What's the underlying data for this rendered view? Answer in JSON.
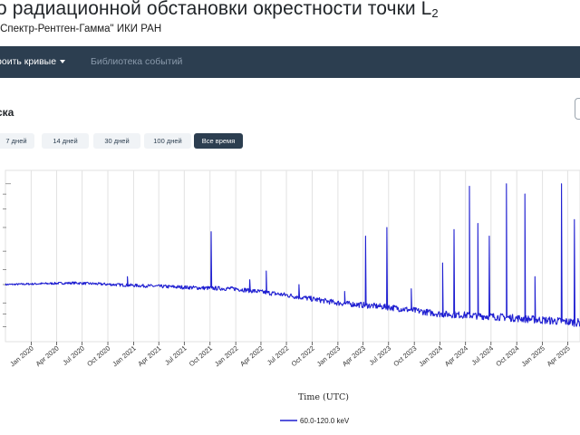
{
  "header": {
    "title_main": "о радиационной обстановки окрестности точки L",
    "title_sub": "2",
    "subtitle": "\"Спектр-Рентген-Гамма\" ИКИ РАН"
  },
  "navbar": {
    "build_label": "строить кривые",
    "library_label": "Библиотека событий"
  },
  "section": {
    "title": "ска"
  },
  "time_ranges": [
    {
      "label": "7 дней",
      "active": false
    },
    {
      "label": "14 дней",
      "active": false
    },
    {
      "label": "30 дней",
      "active": false
    },
    {
      "label": "100 дней",
      "active": false
    },
    {
      "label": "Все время",
      "active": true
    }
  ],
  "chart_data": {
    "type": "line",
    "xlabel": "Time (UTC)",
    "ylabel": "",
    "x_ticks": [
      "Jan 2020",
      "Apr 2020",
      "Jul 2020",
      "Oct 2020",
      "Jan 2021",
      "Apr 2021",
      "Jul 2021",
      "Oct 2021",
      "Jan 2022",
      "Apr 2022",
      "Jul 2022",
      "Oct 2022",
      "Jan 2023",
      "Apr 2023",
      "Jul 2023",
      "Oct 2023",
      "Jan 2024",
      "Apr 2024",
      "Jul 2024",
      "Oct 2024",
      "Jan 2025",
      "Apr 2025"
    ],
    "x_range": [
      "2019-10-01",
      "2025-05-15"
    ],
    "y_scale": "log",
    "grid": true,
    "legend_position": "bottom",
    "series": [
      {
        "name": "60.0-120.0 keV",
        "color": "#1f1fd1",
        "baseline": [
          [
            "2019-10-01",
            1.0
          ],
          [
            "2020-06-01",
            1.02
          ],
          [
            "2021-01-01",
            0.99
          ],
          [
            "2021-09-01",
            0.96
          ],
          [
            "2022-01-01",
            0.95
          ],
          [
            "2022-07-01",
            0.88
          ],
          [
            "2023-01-01",
            0.8
          ],
          [
            "2023-07-01",
            0.76
          ],
          [
            "2024-01-01",
            0.7
          ],
          [
            "2024-07-01",
            0.68
          ],
          [
            "2025-01-01",
            0.65
          ],
          [
            "2025-05-15",
            0.63
          ]
        ],
        "peaks": [
          [
            "2020-12-10",
            1.1
          ],
          [
            "2021-10-05",
            1.9
          ],
          [
            "2022-02-20",
            1.06
          ],
          [
            "2022-04-20",
            1.18
          ],
          [
            "2022-08-15",
            1.0
          ],
          [
            "2023-01-25",
            0.92
          ],
          [
            "2023-04-10",
            1.8
          ],
          [
            "2023-06-25",
            2.0
          ],
          [
            "2023-09-20",
            0.95
          ],
          [
            "2024-01-10",
            1.3
          ],
          [
            "2024-02-20",
            1.95
          ],
          [
            "2024-04-15",
            3.3
          ],
          [
            "2024-05-15",
            2.1
          ],
          [
            "2024-06-25",
            1.8
          ],
          [
            "2024-08-25",
            3.4
          ],
          [
            "2024-10-30",
            3.0
          ],
          [
            "2024-12-05",
            1.1
          ],
          [
            "2025-03-10",
            3.4
          ],
          [
            "2025-04-25",
            2.2
          ]
        ]
      }
    ]
  }
}
